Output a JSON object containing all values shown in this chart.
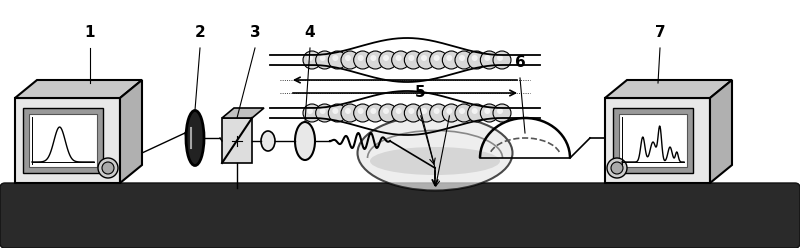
{
  "bg_color": "#ffffff",
  "lc": "#000000",
  "platform_color": "#2a2a2a",
  "box_face": "#e8e8e8",
  "box_top": "#c8c8c8",
  "box_right": "#b0b0b0",
  "screen_bg": "#999999",
  "screen_inner": "#ffffff",
  "lens_dark": "#222222",
  "bead_color": "#dddddd",
  "dish_fill": "#e0e0e0",
  "half_dome_fill": "#d0d0d0"
}
